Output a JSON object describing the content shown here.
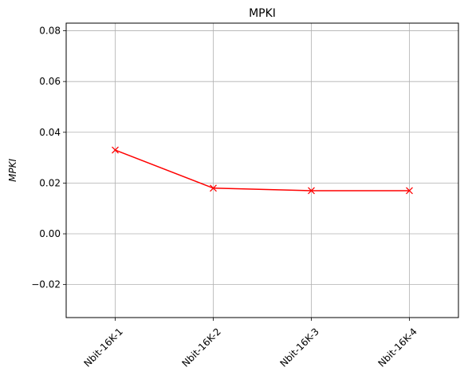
{
  "chart_data": {
    "type": "line",
    "title": "MPKI",
    "xlabel": "",
    "ylabel": "MPKI",
    "categories": [
      "Nbit-16K-1",
      "Nbit-16K-2",
      "Nbit-16K-3",
      "Nbit-16K-4"
    ],
    "series": [
      {
        "values": [
          0.033,
          0.018,
          0.017,
          0.017
        ],
        "color": "#ff0000",
        "marker": "x"
      }
    ],
    "ylim": [
      -0.033,
      0.083
    ],
    "yticks": [
      -0.02,
      0.0,
      0.02,
      0.04,
      0.06,
      0.08
    ],
    "ytick_labels": [
      "−0.02",
      "0.00",
      "0.02",
      "0.04",
      "0.06",
      "0.08"
    ],
    "grid": true,
    "tick_rotation_deg": 45
  }
}
